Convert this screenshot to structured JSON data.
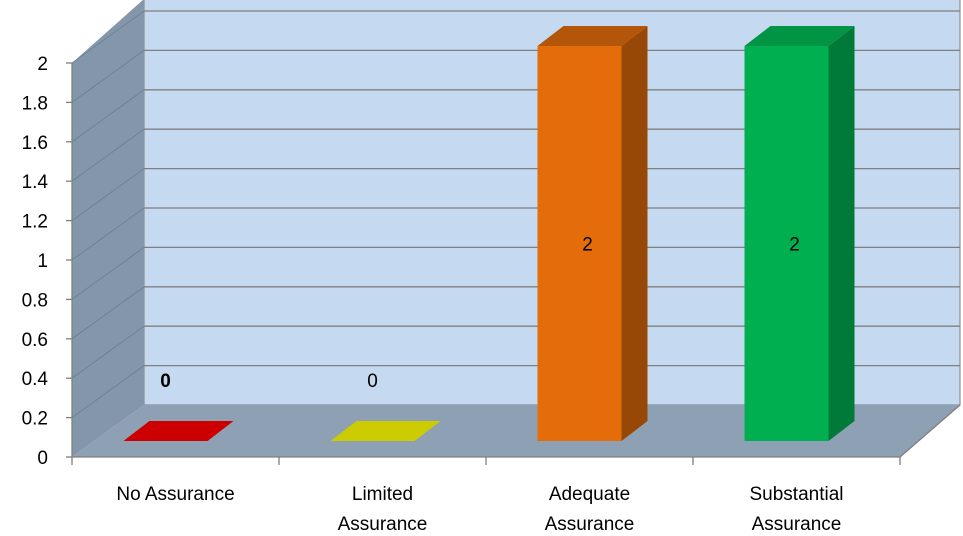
{
  "chart_data": {
    "type": "bar",
    "title": "",
    "xlabel": "",
    "ylabel": "",
    "categories": [
      [
        "No Assurance"
      ],
      [
        "Limited",
        "Assurance"
      ],
      [
        "Adequate",
        "Assurance"
      ],
      [
        "Substantial",
        "Assurance"
      ]
    ],
    "values": [
      0,
      0,
      2,
      2
    ],
    "data_labels": [
      "0",
      "0",
      "2",
      "2"
    ],
    "data_label_bold": [
      true,
      false,
      false,
      false
    ],
    "ylim": [
      0,
      2
    ],
    "yticks": [
      "0",
      "0.2",
      "0.4",
      "0.6",
      "0.8",
      "1",
      "1.2",
      "1.4",
      "1.6",
      "1.8",
      "2"
    ],
    "grid": true,
    "three_d": true,
    "legend": "none",
    "colors": {
      "bars": [
        {
          "front": "#cc0000",
          "side": "#8b0000",
          "top": "#cc0000"
        },
        {
          "front": "#cccc00",
          "side": "#8b8b00",
          "top": "#cccc00"
        },
        {
          "front": "#e46c0a",
          "side": "#974706",
          "top": "#b4560a"
        },
        {
          "front": "#00b050",
          "side": "#007a38",
          "top": "#009444"
        }
      ],
      "back_wall": "#c5d9f1",
      "side_wall": "#8496a9",
      "floor": "#8ea0b3",
      "gridline": "#7f7f7f",
      "axis": "#7f7f7f"
    }
  }
}
